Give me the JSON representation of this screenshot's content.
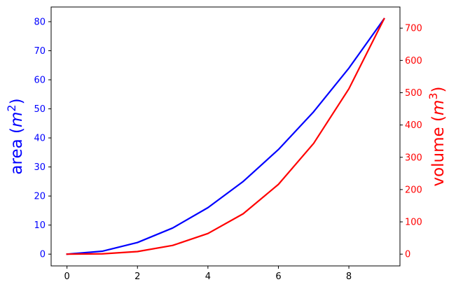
{
  "chart_data": {
    "type": "line",
    "x": [
      0,
      1,
      2,
      3,
      4,
      5,
      6,
      7,
      8,
      9
    ],
    "xlim": [
      -0.45,
      9.45
    ],
    "xticks": [
      0,
      2,
      4,
      6,
      8
    ],
    "grid": false,
    "legend": "none",
    "axes": {
      "left": {
        "label_prefix": "area (",
        "label_var": "m",
        "label_exp": "2",
        "label_suffix": ")",
        "color": "#0000ff",
        "ylim": [
          -4.05,
          85.05
        ],
        "ticks": [
          0,
          10,
          20,
          30,
          40,
          50,
          60,
          70,
          80
        ]
      },
      "right": {
        "label_prefix": "volume (",
        "label_var": "m",
        "label_exp": "3",
        "label_suffix": ")",
        "color": "#ff0000",
        "ylim": [
          -36.45,
          765.45
        ],
        "ticks": [
          0,
          100,
          200,
          300,
          400,
          500,
          600,
          700
        ]
      }
    },
    "series": [
      {
        "axis": "left",
        "color": "#0000ff",
        "values": [
          0,
          1,
          4,
          9,
          16,
          25,
          36,
          49,
          64,
          81
        ]
      },
      {
        "axis": "right",
        "color": "#ff0000",
        "values": [
          0,
          1,
          8,
          27,
          64,
          125,
          216,
          343,
          512,
          729
        ]
      }
    ]
  }
}
